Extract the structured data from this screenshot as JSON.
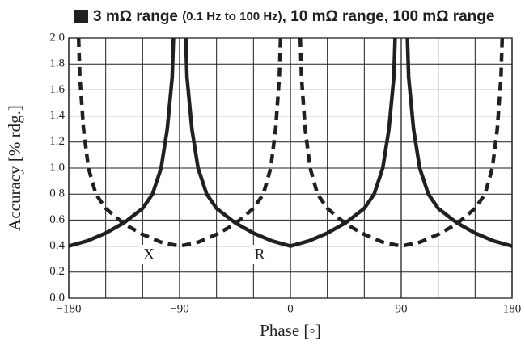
{
  "chart_data": {
    "type": "line",
    "title": [
      "3 mΩ range ",
      "(0.1 Hz to 100 Hz)",
      ", 10 mΩ range, 100 mΩ range"
    ],
    "x_label": "Phase [◦]",
    "y_label": "Accuracy [% rdg.]",
    "annotations": [
      "X",
      "R"
    ],
    "xlim": [
      -180,
      180
    ],
    "xticks": [
      {
        "value": -180,
        "label": "−180"
      },
      {
        "value": -90,
        "label": "−90"
      },
      0,
      90,
      180
    ],
    "xgrid": [
      -150,
      -120,
      -60,
      -30,
      30,
      60,
      120,
      150
    ],
    "ylim": [
      0,
      2
    ],
    "yticks": [
      {
        "value": 0,
        "label": "0.0"
      },
      0.2,
      0.4,
      0.6,
      0.8,
      {
        "value": 1,
        "label": "1.0"
      },
      1.2,
      1.4,
      1.6,
      1.8,
      {
        "value": 2,
        "label": "2.0"
      }
    ],
    "grid": true,
    "series": [
      {
        "color": "#231f20",
        "style": "solid",
        "x": [
          -180,
          -165,
          -150,
          -135,
          -120,
          -112,
          -105,
          -100,
          -96,
          -95,
          -90,
          -85,
          -84,
          -80,
          -75,
          -68,
          -60,
          -45,
          -30,
          -15,
          0,
          15,
          30,
          45,
          60,
          68,
          75,
          80,
          84,
          85,
          90,
          95,
          96,
          100,
          105,
          112,
          120,
          135,
          150,
          165,
          180
        ],
        "values": [
          0.4,
          0.44,
          0.5,
          0.58,
          0.69,
          0.8,
          1.0,
          1.3,
          1.7,
          2.0,
          null,
          2.0,
          1.7,
          1.3,
          1.0,
          0.8,
          0.69,
          0.58,
          0.5,
          0.44,
          0.4,
          0.44,
          0.5,
          0.58,
          0.69,
          0.8,
          1.0,
          1.3,
          1.7,
          2.0,
          null,
          2.0,
          1.7,
          1.3,
          1.0,
          0.8,
          0.69,
          0.58,
          0.5,
          0.44,
          0.4
        ]
      },
      {
        "color": "#231f20",
        "style": "dashed",
        "x": [
          -172,
          -171,
          -168,
          -164,
          -158,
          -150,
          -135,
          -120,
          -105,
          -90,
          -75,
          -60,
          -45,
          -30,
          -22,
          -16,
          -12,
          -9,
          -8,
          0,
          8,
          9,
          12,
          16,
          22,
          30,
          45,
          60,
          75,
          90,
          105,
          120,
          135,
          150,
          158,
          164,
          168,
          171,
          172
        ],
        "values": [
          2.0,
          1.7,
          1.3,
          1.0,
          0.8,
          0.69,
          0.57,
          0.49,
          0.43,
          0.4,
          0.43,
          0.49,
          0.57,
          0.69,
          0.8,
          1.0,
          1.3,
          1.7,
          2.0,
          null,
          2.0,
          1.7,
          1.3,
          1.0,
          0.8,
          0.69,
          0.57,
          0.49,
          0.43,
          0.4,
          0.43,
          0.49,
          0.57,
          0.69,
          0.8,
          1.0,
          1.3,
          1.7,
          2.0
        ]
      }
    ]
  }
}
